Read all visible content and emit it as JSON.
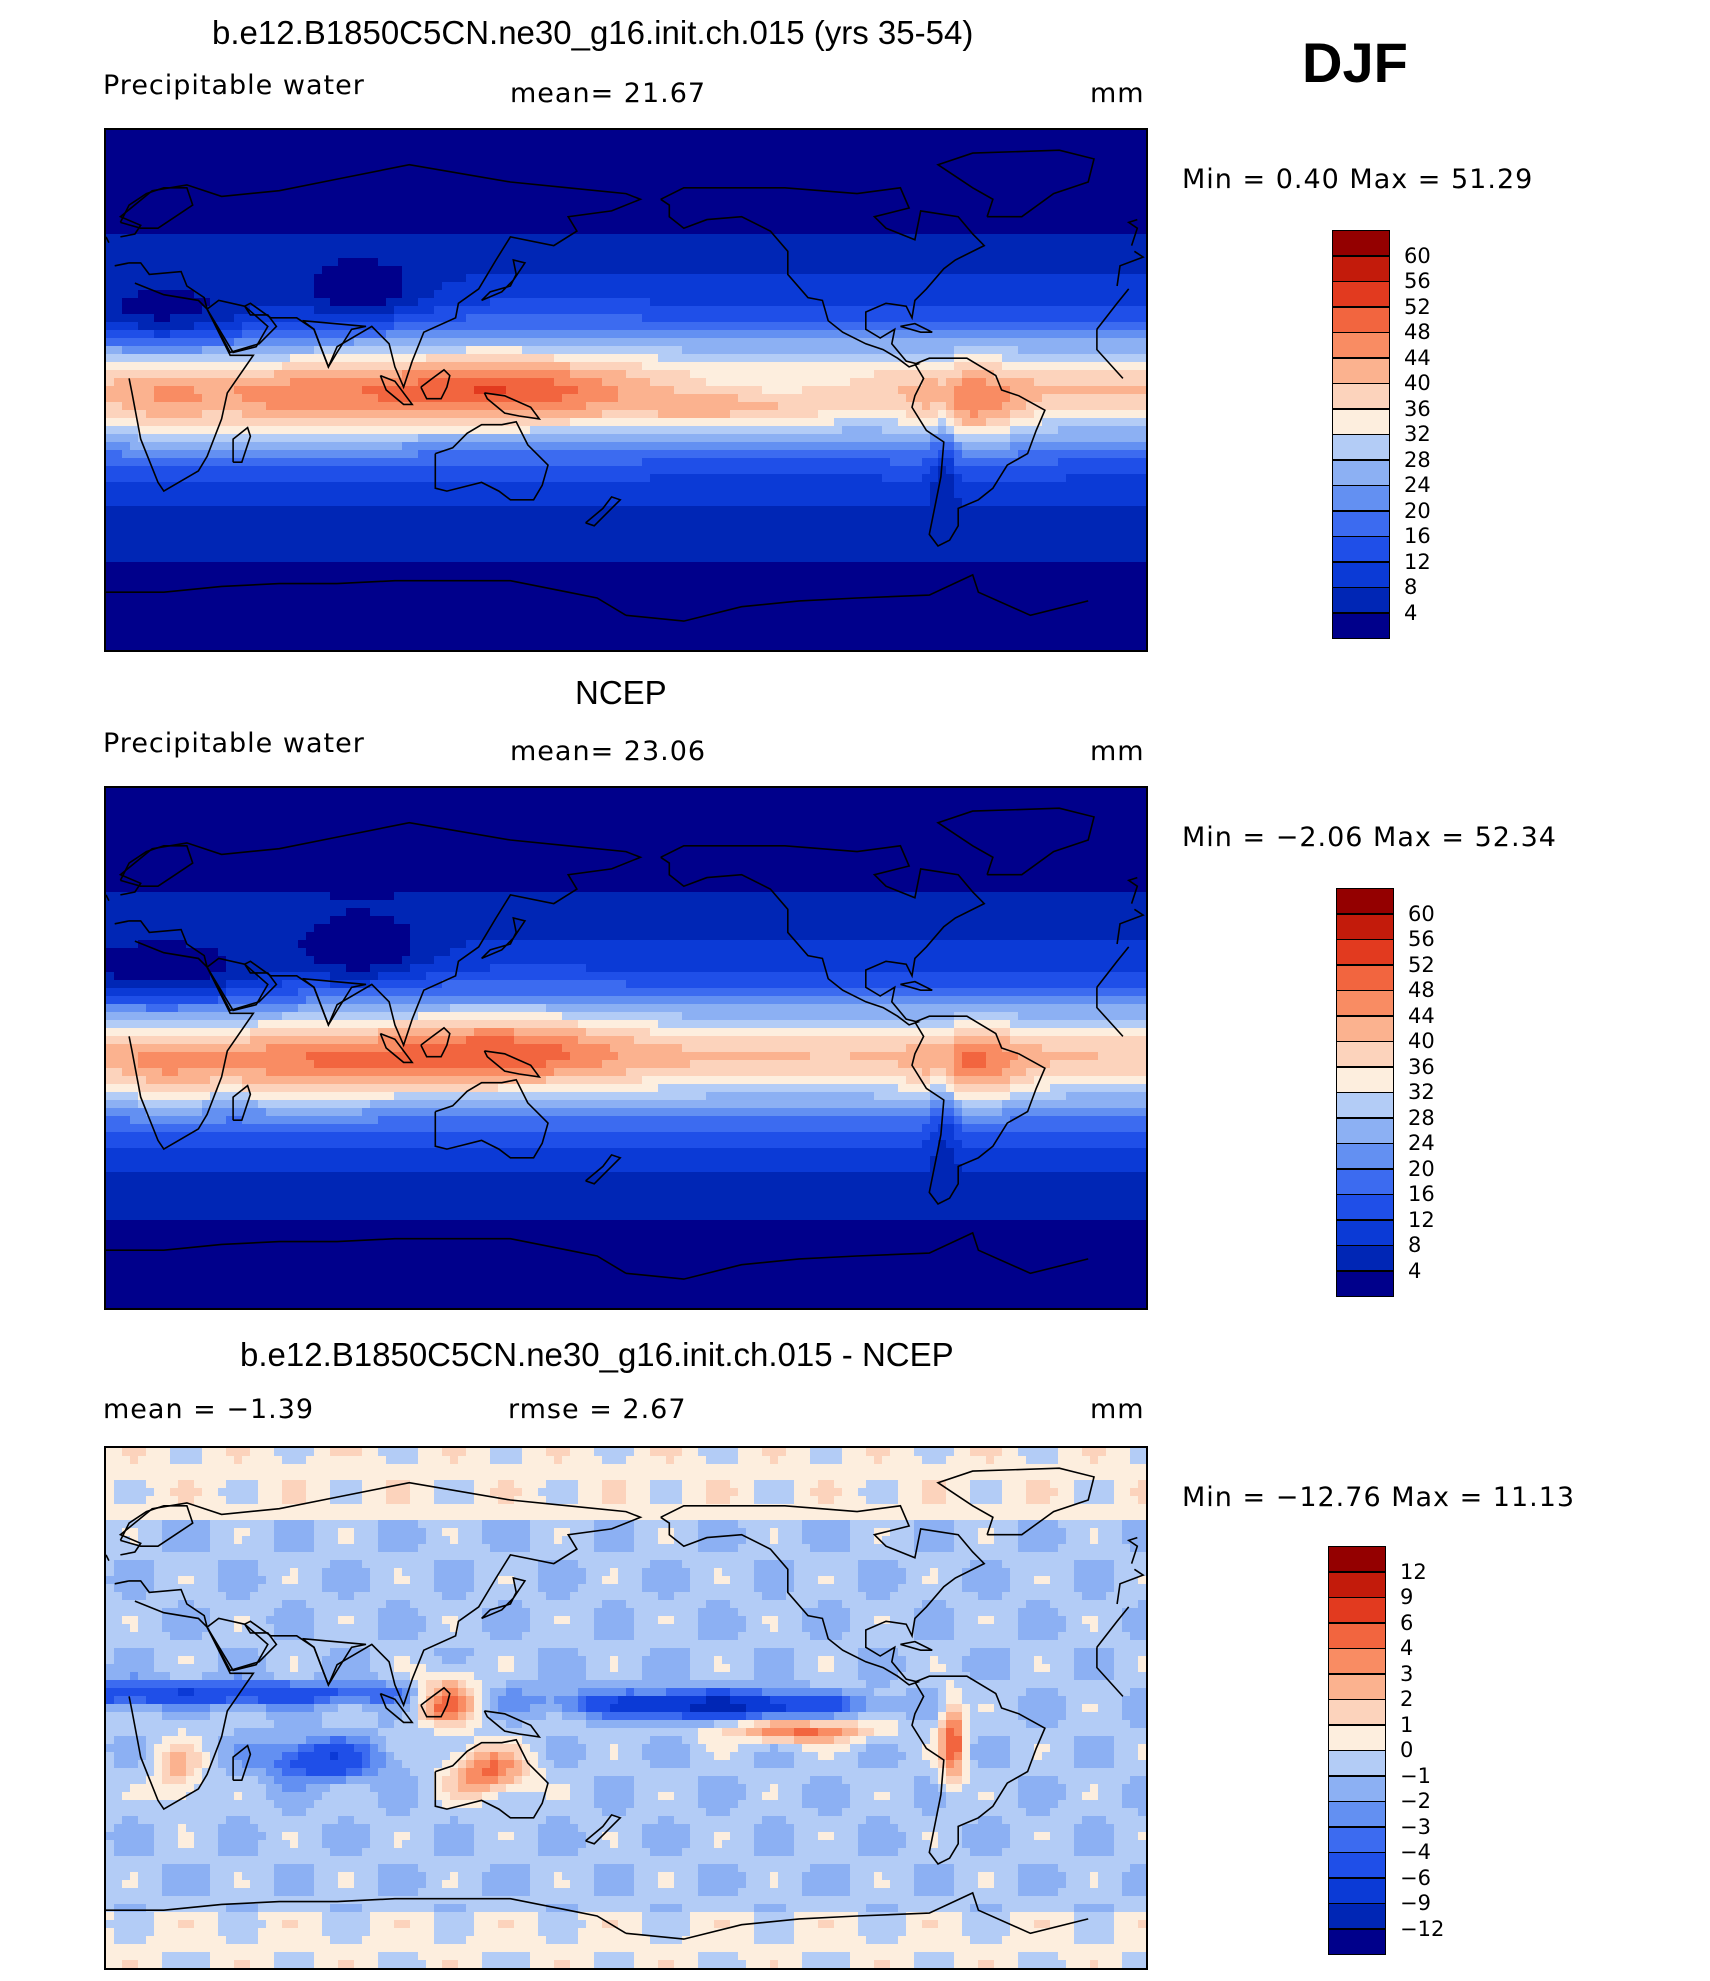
{
  "season": "DJF",
  "colors": {
    "scale": [
      "#00008b",
      "#0026b5",
      "#0b3ad6",
      "#1f4fe8",
      "#3c6bf0",
      "#6390f2",
      "#8cb0f3",
      "#b3ccf6",
      "#d6e4fa",
      "#fdeede",
      "#fcd3bc",
      "#fbb28f",
      "#f98c63",
      "#f2653f",
      "#e23a1f",
      "#c31b0b",
      "#940000"
    ],
    "coast": "#000000"
  },
  "chart_data": [
    {
      "type": "heatmap",
      "title": "b.e12.B1850C5CN.ne30_g16.init.ch.015 (yrs 35-54)",
      "variable": "Precipitable water",
      "stat_text": "mean=   21.67",
      "units": "mm",
      "minmax_text": "Min  =     0.40  Max  =    51.29",
      "colorbar_ticks": [
        "60",
        "56",
        "52",
        "48",
        "44",
        "40",
        "36",
        "32",
        "28",
        "24",
        "20",
        "16",
        "12",
        "8",
        "4"
      ],
      "min": 0.4,
      "max": 51.29,
      "mean": 21.67
    },
    {
      "type": "heatmap",
      "title": "NCEP",
      "variable": "Precipitable water",
      "stat_text": "mean=   23.06",
      "units": "mm",
      "minmax_text": "Min  =   −2.06  Max  =    52.34",
      "colorbar_ticks": [
        "60",
        "56",
        "52",
        "48",
        "44",
        "40",
        "36",
        "32",
        "28",
        "24",
        "20",
        "16",
        "12",
        "8",
        "4"
      ],
      "min": -2.06,
      "max": 52.34,
      "mean": 23.06
    },
    {
      "type": "heatmap",
      "title": "b.e12.B1850C5CN.ne30_g16.init.ch.015 - NCEP",
      "variable": "",
      "stat_text": "mean  =    −1.39",
      "stat2_text": "rmse  =     2.67",
      "units": "mm",
      "minmax_text": "Min  = −12.76  Max  =    11.13",
      "colorbar_ticks": [
        "12",
        "9",
        "6",
        "4",
        "3",
        "2",
        "1",
        "0",
        "−1",
        "−2",
        "−3",
        "−4",
        "−6",
        "−9",
        "−12"
      ],
      "min": -12.76,
      "max": 11.13,
      "mean": -1.39,
      "rmse": 2.67
    }
  ]
}
